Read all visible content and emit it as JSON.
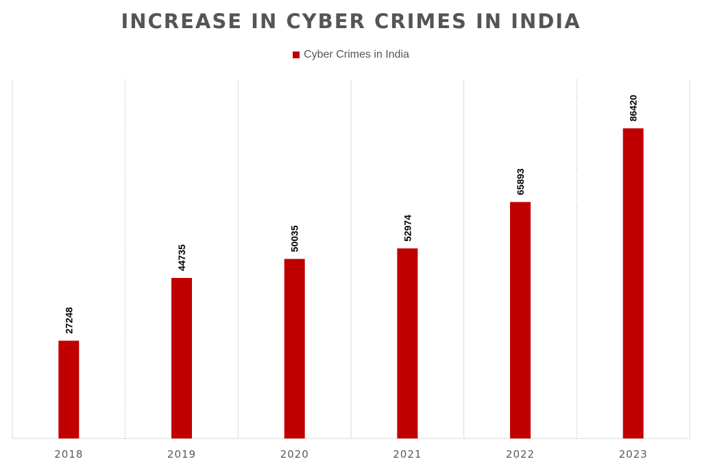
{
  "chart_data": {
    "type": "bar",
    "title": "INCREASE IN CYBER CRIMES IN INDIA",
    "xlabel": "",
    "ylabel": "",
    "categories": [
      "2018",
      "2019",
      "2020",
      "2021",
      "2022",
      "2023"
    ],
    "series": [
      {
        "name": "Cyber Crimes in India",
        "values": [
          27248,
          44735,
          50035,
          52974,
          65893,
          86420
        ],
        "color": "#c00000"
      }
    ],
    "data_labels": [
      "27248",
      "44735",
      "50035",
      "52974",
      "65893",
      "86420"
    ],
    "ylim": [
      0,
      100000
    ],
    "y_axis_visible": false,
    "grid": false,
    "legend_position": "top-center"
  }
}
